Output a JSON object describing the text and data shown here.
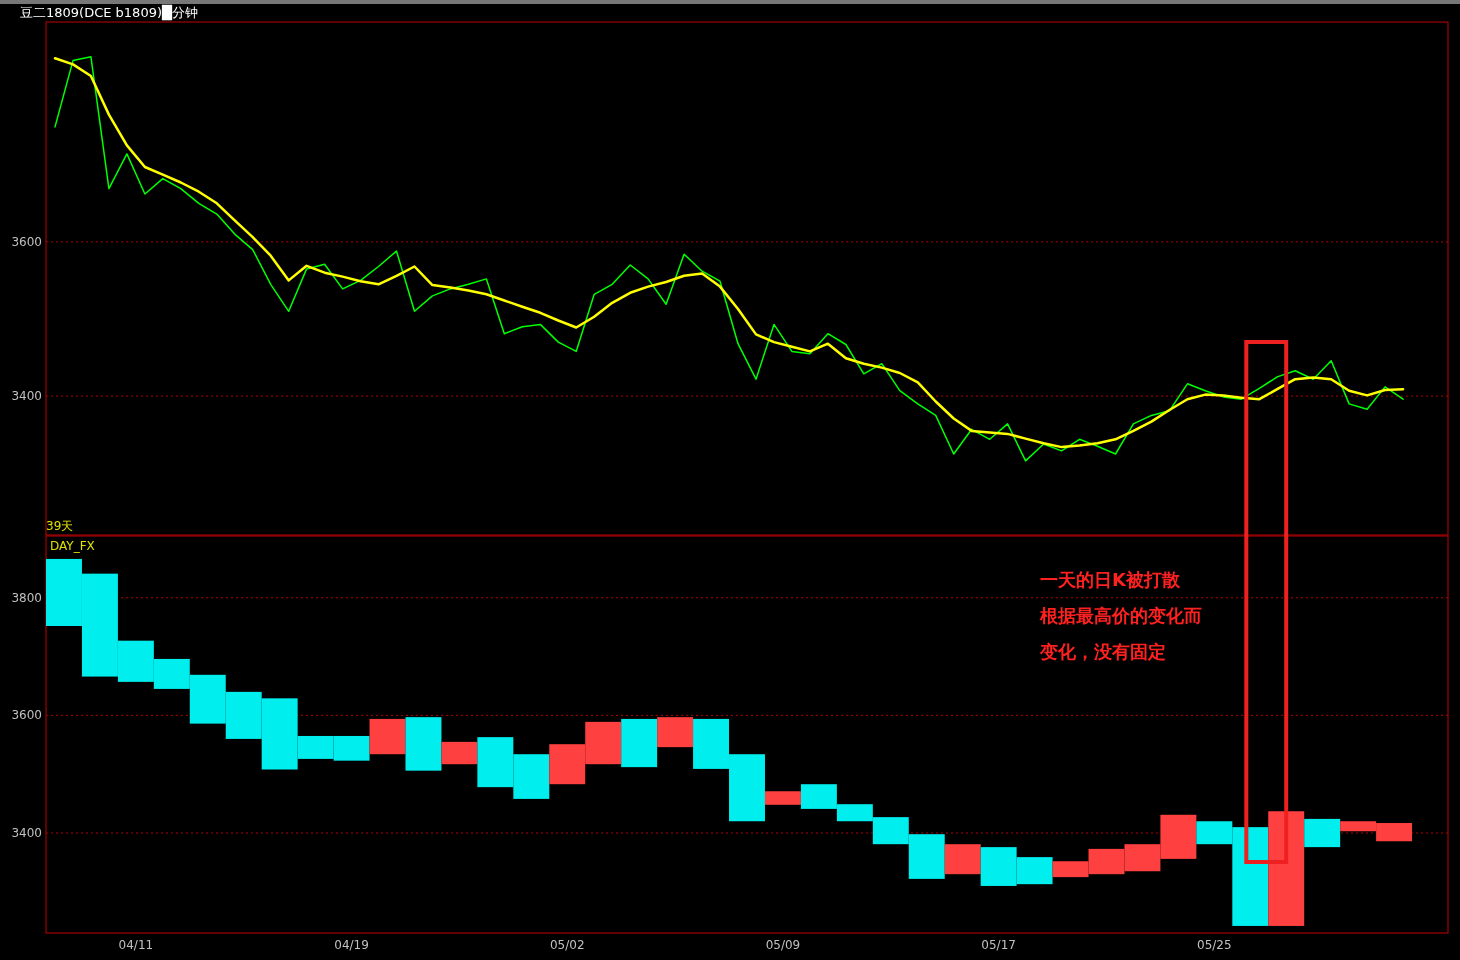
{
  "chart_data": [
    {
      "type": "line",
      "title": "豆二1809(DCE b1809)█分钟",
      "annotations": [
        "39天"
      ],
      "ylim": [
        3220,
        3885
      ],
      "yticks": [
        3400,
        3600
      ],
      "grid": "y",
      "tick_labels": "y",
      "categories": [
        null,
        null,
        null,
        null,
        null,
        null,
        null,
        null,
        null,
        null,
        null,
        null,
        null,
        null,
        null,
        null,
        null,
        null,
        null,
        null,
        null,
        null,
        null,
        null,
        null,
        null,
        null,
        null,
        null,
        null,
        null,
        null,
        null,
        null,
        null,
        null,
        null,
        null,
        null,
        null,
        null,
        null,
        null,
        null,
        null,
        null,
        null,
        null,
        null,
        null,
        null,
        null,
        null,
        null,
        null,
        null,
        null,
        null,
        null,
        null,
        null,
        null,
        null,
        null,
        null,
        null,
        null,
        null,
        null,
        null,
        null,
        null,
        null,
        null,
        null,
        null,
        null,
        null
      ],
      "series": [
        {
          "color": "#00ff00",
          "values": [
            3749,
            3835,
            3840,
            3669,
            3714,
            3662,
            3682,
            3669,
            3650,
            3636,
            3610,
            3590,
            3545,
            3510,
            3565,
            3571,
            3539,
            3550,
            3568,
            3588,
            3510,
            3530,
            3539,
            3545,
            3552,
            3481,
            3490,
            3493,
            3470,
            3458,
            3532,
            3545,
            3570,
            3552,
            3519,
            3584,
            3562,
            3549,
            3468,
            3422,
            3493,
            3458,
            3455,
            3481,
            3467,
            3429,
            3442,
            3407,
            3390,
            3375,
            3325,
            3357,
            3344,
            3364,
            3316,
            3338,
            3329,
            3344,
            3335,
            3325,
            3364,
            3375,
            3381,
            3416,
            3407,
            3399,
            3396,
            3410,
            3425,
            3433,
            3422,
            3446,
            3390,
            3383,
            3412,
            3396,
            null,
            null
          ]
        },
        {
          "color": "#ffff00",
          "values": [
            3838,
            3830,
            3815,
            3765,
            3725,
            3697,
            3687,
            3677,
            3665,
            3650,
            3628,
            3606,
            3582,
            3550,
            3569,
            3560,
            3555,
            3549,
            3545,
            3556,
            3568,
            3544,
            3541,
            3537,
            3532,
            3524,
            3516,
            3508,
            3498,
            3489,
            3503,
            3521,
            3534,
            3542,
            3548,
            3556,
            3559,
            3542,
            3513,
            3480,
            3470,
            3464,
            3458,
            3468,
            3449,
            3442,
            3437,
            3430,
            3418,
            3393,
            3371,
            3355,
            3353,
            3351,
            3345,
            3339,
            3334,
            3336,
            3339,
            3344,
            3355,
            3367,
            3382,
            3396,
            3402,
            3401,
            3398,
            3396,
            3409,
            3422,
            3424,
            3422,
            3407,
            3401,
            3408,
            3409,
            null,
            null
          ]
        }
      ]
    },
    {
      "type": "bar",
      "title": "DAY_FX",
      "annotations": [
        "一天的日K被打散",
        "根据最高价的变化而",
        "变化，没有固定"
      ],
      "ylim": [
        3230,
        3905
      ],
      "yticks": [
        3400,
        3600,
        3800
      ],
      "grid": "y",
      "categories": [
        null,
        null,
        "04/11",
        null,
        null,
        null,
        null,
        null,
        "04/19",
        null,
        null,
        null,
        null,
        null,
        "05/02",
        null,
        null,
        null,
        null,
        null,
        "05/09",
        null,
        null,
        null,
        null,
        null,
        "05/17",
        null,
        null,
        null,
        null,
        null,
        "05/25",
        null,
        null,
        null,
        null,
        null
      ],
      "base": [
        3752,
        3666,
        3657,
        3645,
        3586,
        3560,
        3508,
        3526,
        3523,
        3534,
        3506,
        3517,
        3478,
        3458,
        3483,
        3517,
        3512,
        3546,
        3509,
        3420,
        3448,
        3441,
        3420,
        3381,
        3322,
        3330,
        3310,
        3313,
        3325,
        3330,
        3335,
        3356,
        3381,
        3242,
        3242,
        3376,
        3403,
        3386
      ],
      "values": [
        114,
        175,
        70,
        51,
        83,
        80,
        121,
        39,
        42,
        60,
        91,
        38,
        85,
        76,
        68,
        72,
        82,
        51,
        85,
        114,
        23,
        42,
        29,
        46,
        76,
        51,
        66,
        46,
        27,
        43,
        46,
        75,
        39,
        168,
        195,
        48,
        17,
        31
      ],
      "colors": [
        "#00eeee",
        "#00eeee",
        "#00eeee",
        "#00eeee",
        "#00eeee",
        "#00eeee",
        "#00eeee",
        "#00eeee",
        "#00eeee",
        "#ff4040",
        "#00eeee",
        "#ff4040",
        "#00eeee",
        "#00eeee",
        "#ff4040",
        "#ff4040",
        "#00eeee",
        "#ff4040",
        "#00eeee",
        "#00eeee",
        "#ff4040",
        "#00eeee",
        "#00eeee",
        "#00eeee",
        "#00eeee",
        "#ff4040",
        "#00eeee",
        "#00eeee",
        "#ff4040",
        "#ff4040",
        "#ff4040",
        "#ff4040",
        "#00eeee",
        "#00eeee",
        "#ff4040",
        "#00eeee",
        "#ff4040",
        "#ff4040"
      ]
    }
  ]
}
